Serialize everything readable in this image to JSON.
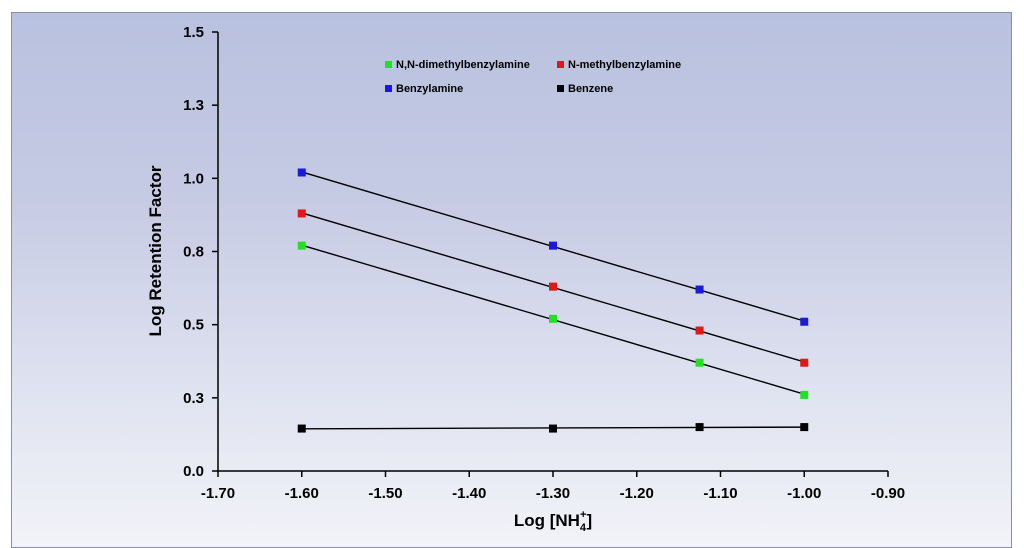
{
  "chart_data": {
    "type": "scatter",
    "title": "",
    "xlabel": "Log [NH",
    "xlabel_sub": "4",
    "xlabel_sup": "+",
    "xlabel_end": "]",
    "ylabel": "Log Retention Factor",
    "xlim": [
      -1.7,
      -0.9
    ],
    "ylim": [
      0.0,
      1.5
    ],
    "x_ticks": [
      "-1.70",
      "-1.60",
      "-1.50",
      "-1.40",
      "-1.30",
      "-1.20",
      "-1.10",
      "-1.00",
      "-0.90"
    ],
    "x_tick_values": [
      -1.7,
      -1.6,
      -1.5,
      -1.4,
      -1.3,
      -1.2,
      -1.1,
      -1.0,
      -0.9
    ],
    "y_ticks": [
      "0.0",
      "0.3",
      "0.5",
      "0.8",
      "1.0",
      "1.3",
      "1.5"
    ],
    "y_tick_values": [
      0.0,
      0.25,
      0.5,
      0.75,
      1.0,
      1.25,
      1.5
    ],
    "grid": false,
    "legend_position": "top-center",
    "trendlines": true,
    "series": [
      {
        "name": "N,N-dimethylbenzylamine",
        "color": "#22e022",
        "x": [
          -1.6,
          -1.3,
          -1.125,
          -1.0
        ],
        "y": [
          0.77,
          0.52,
          0.37,
          0.26
        ]
      },
      {
        "name": "N-methylbenzylamine",
        "color": "#e01818",
        "x": [
          -1.6,
          -1.3,
          -1.125,
          -1.0
        ],
        "y": [
          0.88,
          0.63,
          0.48,
          0.37
        ]
      },
      {
        "name": "Benzylamine",
        "color": "#1a1ad8",
        "x": [
          -1.6,
          -1.3,
          -1.125,
          -1.0
        ],
        "y": [
          1.02,
          0.77,
          0.62,
          0.51
        ]
      },
      {
        "name": "Benzene",
        "color": "#000000",
        "x": [
          -1.6,
          -1.3,
          -1.125,
          -1.0
        ],
        "y": [
          0.145,
          0.145,
          0.15,
          0.15
        ]
      }
    ]
  }
}
